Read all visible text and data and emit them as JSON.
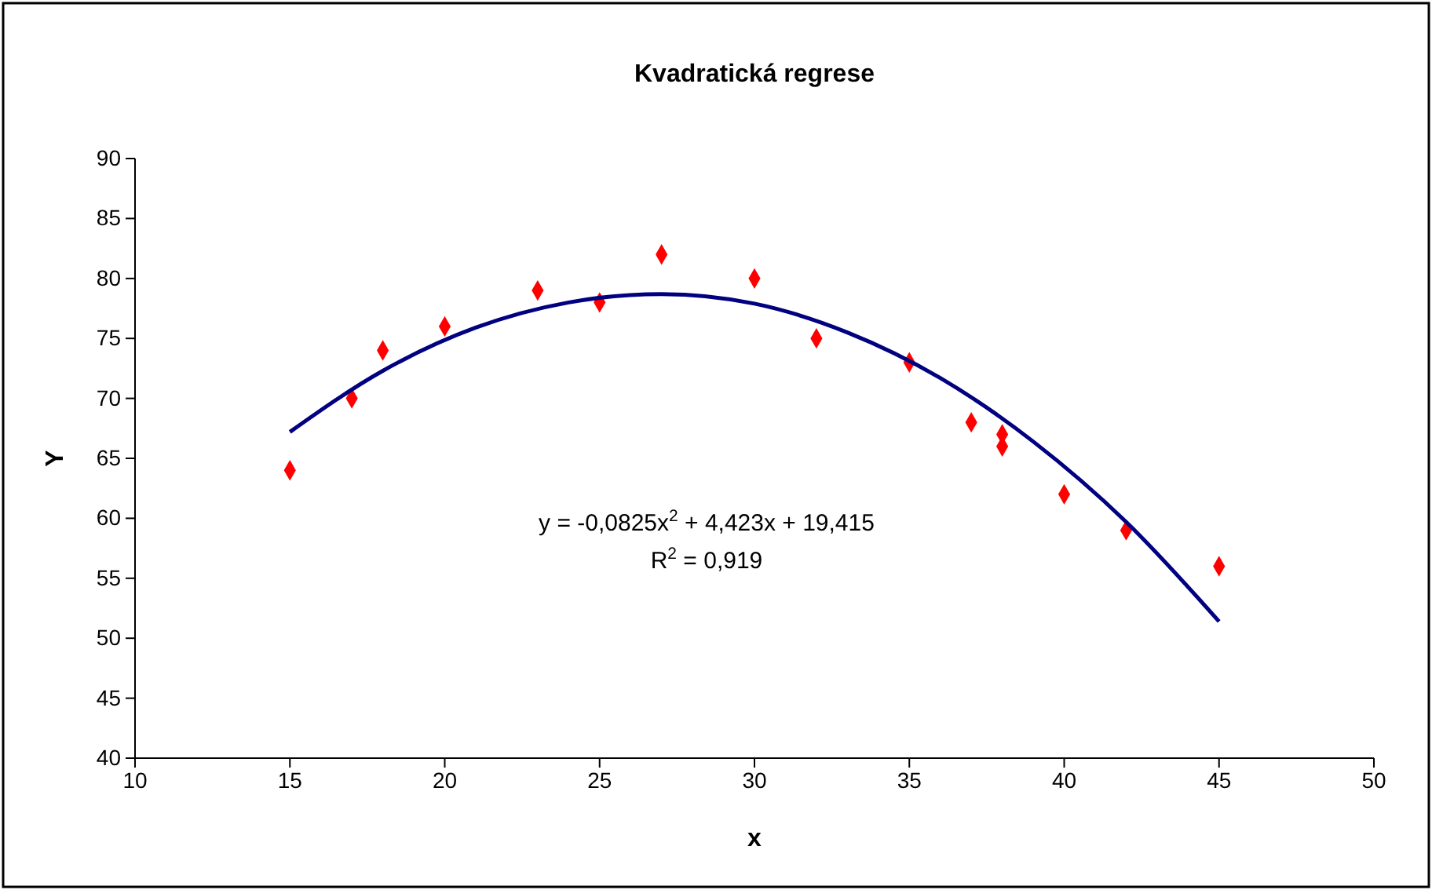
{
  "chart_data": {
    "type": "scatter",
    "title": "Kvadratická regrese",
    "xlabel": "x",
    "ylabel": "Y",
    "xlim": [
      10,
      50
    ],
    "xticks": [
      10,
      15,
      20,
      25,
      30,
      35,
      40,
      45,
      50
    ],
    "ylim": [
      40,
      90
    ],
    "yticks": [
      40,
      45,
      50,
      55,
      60,
      65,
      70,
      75,
      80,
      85,
      90
    ],
    "grid": false,
    "marker": "diamond",
    "series": [
      {
        "color": "#ff0000",
        "x": [
          15,
          17,
          18,
          20,
          23,
          25,
          27,
          30,
          32,
          35,
          37,
          38,
          38,
          40,
          42,
          45
        ],
        "values": [
          64,
          70,
          74,
          76,
          79,
          78,
          82,
          80,
          75,
          73,
          68,
          66,
          67,
          62,
          59,
          56
        ]
      },
      {
        "type": "line",
        "color": "#000080",
        "marker": "none",
        "x": [
          15,
          18,
          21,
          24,
          27,
          30,
          33,
          36,
          39,
          42,
          45
        ],
        "values": [
          67.2,
          72.3,
          75.9,
          78.0,
          78.7,
          77.9,
          75.5,
          71.7,
          66.4,
          59.7,
          51.4
        ]
      }
    ],
    "annotations": [
      "y = -0,0825x$^{2}$ + 4,423x + 19,415",
      "R$^{2}$ = 0,919"
    ]
  }
}
